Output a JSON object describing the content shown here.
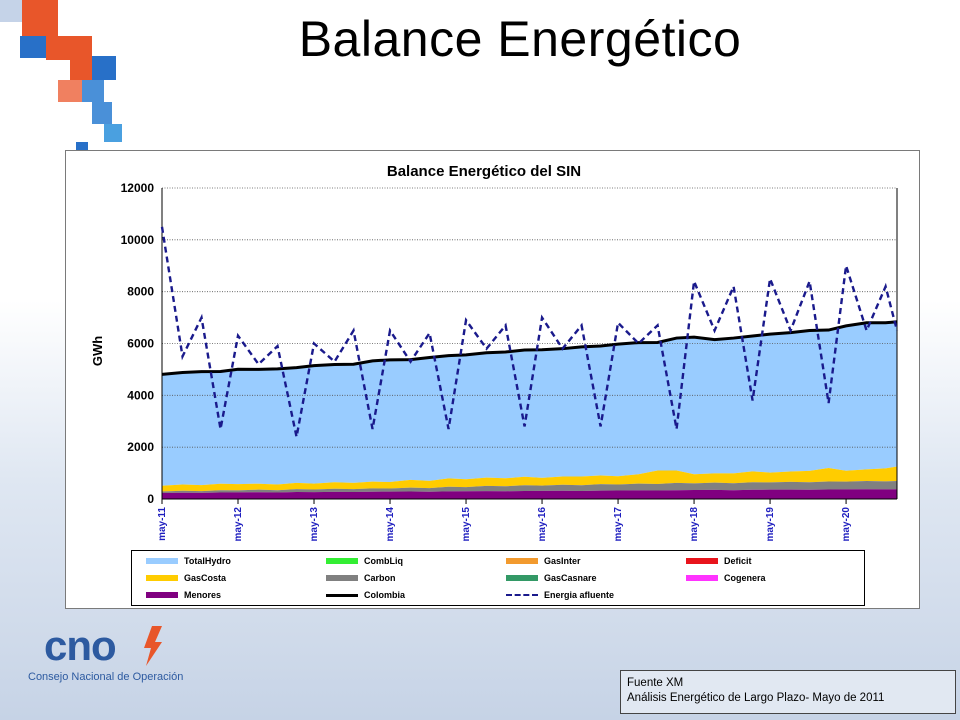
{
  "slide": {
    "title": "Balance Energético",
    "source_line1": "Fuente XM",
    "source_line2": "Análisis Energético de Largo Plazo- Mayo de 2011",
    "logo_text": "cno",
    "logo_subtitle": "Consejo Nacional de Operación"
  },
  "chart_data": {
    "type": "area",
    "title": "Balance Energético del SIN",
    "ylabel": "GWh",
    "xlabel": "",
    "ylim": [
      0,
      12000
    ],
    "yticks": [
      "0",
      "2000",
      "4000",
      "6000",
      "8000",
      "10000",
      "12000"
    ],
    "xticks": [
      "may-11",
      "may-12",
      "may-13",
      "may-14",
      "may-15",
      "may-16",
      "may-17",
      "may-18",
      "may-19",
      "may-20"
    ],
    "grid": true,
    "legend_position": "bottom",
    "legend": [
      {
        "name": "TotalHydro",
        "color": "#99ccff",
        "style": "area"
      },
      {
        "name": "CombLiq",
        "color": "#33ee33",
        "style": "area"
      },
      {
        "name": "GasInter",
        "color": "#f29a2e",
        "style": "area"
      },
      {
        "name": "Deficit",
        "color": "#e8141c",
        "style": "area"
      },
      {
        "name": "GasCosta",
        "color": "#ffcc00",
        "style": "area"
      },
      {
        "name": "Carbon",
        "color": "#808080",
        "style": "area"
      },
      {
        "name": "GasCasnare",
        "color": "#339966",
        "style": "area"
      },
      {
        "name": "Cogenera",
        "color": "#ff33ff",
        "style": "area"
      },
      {
        "name": "Menores",
        "color": "#800080",
        "style": "area"
      },
      {
        "name": "Colombia",
        "color": "#000000",
        "style": "line"
      },
      {
        "name": "Energia afluente",
        "color": "#1a1a8c",
        "style": "dashed"
      }
    ],
    "x_years": [
      2011.33,
      2011.6,
      2011.85,
      2012.1,
      2012.33,
      2012.6,
      2012.85,
      2013.1,
      2013.33,
      2013.6,
      2013.85,
      2014.1,
      2014.33,
      2014.6,
      2014.85,
      2015.1,
      2015.33,
      2015.6,
      2015.85,
      2016.1,
      2016.33,
      2016.6,
      2016.85,
      2017.1,
      2017.33,
      2017.6,
      2017.85,
      2018.1,
      2018.33,
      2018.6,
      2018.85,
      2019.1,
      2019.33,
      2019.6,
      2019.85,
      2020.1,
      2020.33,
      2020.6,
      2020.85,
      2021.0
    ],
    "series": [
      {
        "name": "Menores",
        "values": [
          230,
          240,
          235,
          250,
          255,
          260,
          250,
          270,
          265,
          275,
          270,
          280,
          285,
          290,
          280,
          295,
          300,
          305,
          300,
          310,
          315,
          320,
          310,
          325,
          330,
          335,
          330,
          340,
          345,
          350,
          340,
          355,
          360,
          360,
          355,
          365,
          370,
          375,
          370,
          375
        ]
      },
      {
        "name": "Carbon",
        "values": [
          60,
          80,
          70,
          90,
          80,
          100,
          90,
          110,
          100,
          120,
          110,
          130,
          120,
          150,
          140,
          180,
          160,
          200,
          190,
          220,
          200,
          230,
          220,
          250,
          230,
          260,
          250,
          280,
          260,
          280,
          270,
          290,
          280,
          300,
          290,
          310,
          300,
          320,
          310,
          320
        ]
      },
      {
        "name": "GasCosta",
        "values": [
          220,
          240,
          230,
          250,
          240,
          230,
          220,
          240,
          230,
          250,
          240,
          260,
          250,
          300,
          280,
          320,
          300,
          320,
          310,
          330,
          300,
          320,
          340,
          330,
          320,
          360,
          520,
          480,
          350,
          360,
          380,
          420,
          380,
          400,
          440,
          520,
          420,
          450,
          500,
          560
        ]
      },
      {
        "name": "TotalHydro",
        "values": [
          4300,
          4320,
          4380,
          4330,
          4430,
          4410,
          4460,
          4450,
          4550,
          4545,
          4580,
          4660,
          4715,
          4640,
          4740,
          4735,
          4785,
          4805,
          4810,
          4890,
          4925,
          4930,
          4980,
          5000,
          5110,
          5080,
          4950,
          5110,
          5265,
          5160,
          5220,
          5235,
          5340,
          5360,
          5415,
          5315,
          5590,
          5655,
          5620,
          5585
        ]
      },
      {
        "name": "Colombia",
        "values": [
          4810,
          4880,
          4915,
          4920,
          5005,
          5000,
          5020,
          5070,
          5145,
          5190,
          5200,
          5330,
          5370,
          5380,
          5460,
          5530,
          5560,
          5645,
          5670,
          5750,
          5760,
          5800,
          5870,
          5905,
          5975,
          6035,
          6040,
          6210,
          6245,
          6150,
          6210,
          6290,
          6360,
          6420,
          6500,
          6520,
          6680,
          6800,
          6800,
          6840
        ]
      },
      {
        "name": "Energia afluente",
        "values": [
          10500,
          5500,
          7000,
          2700,
          6300,
          5200,
          5900,
          2400,
          6000,
          5300,
          6500,
          2700,
          6500,
          5300,
          6400,
          2700,
          6900,
          5800,
          6700,
          2800,
          7000,
          5800,
          6700,
          2800,
          6800,
          6000,
          6700,
          2700,
          8400,
          6500,
          8200,
          3800,
          8500,
          6500,
          8400,
          3700,
          9000,
          6500,
          8200,
          6500
        ]
      }
    ]
  }
}
